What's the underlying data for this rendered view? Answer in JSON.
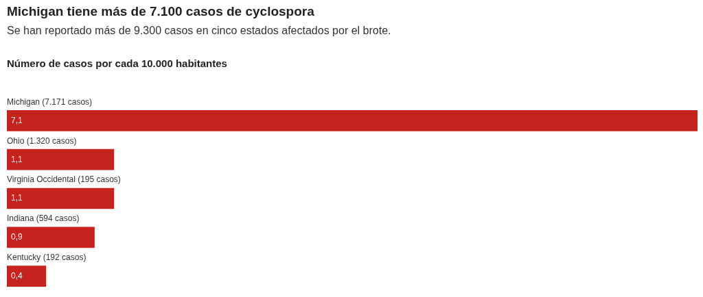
{
  "chart_data": {
    "type": "bar",
    "orientation": "horizontal",
    "title": "Michigan tiene más de 7.100 casos de cyclospora",
    "subtitle": "Se han reportado más de 9.300 casos en cinco estados afectados por el brote.",
    "xlabel": "Número de casos por cada 10.000 habitantes",
    "categories": [
      "Michigan (7.171 casos)",
      "Ohio (1.320 casos)",
      "Virginia Occidental (195 casos)",
      "Indiana (594 casos)",
      "Kentucky (192 casos)"
    ],
    "values": [
      7.1,
      1.1,
      1.1,
      0.9,
      0.4
    ],
    "value_labels": [
      "7,1",
      "1,1",
      "1,1",
      "0,9",
      "0,4"
    ],
    "color": "#c6231f",
    "legend": false,
    "tick_labels": false
  }
}
